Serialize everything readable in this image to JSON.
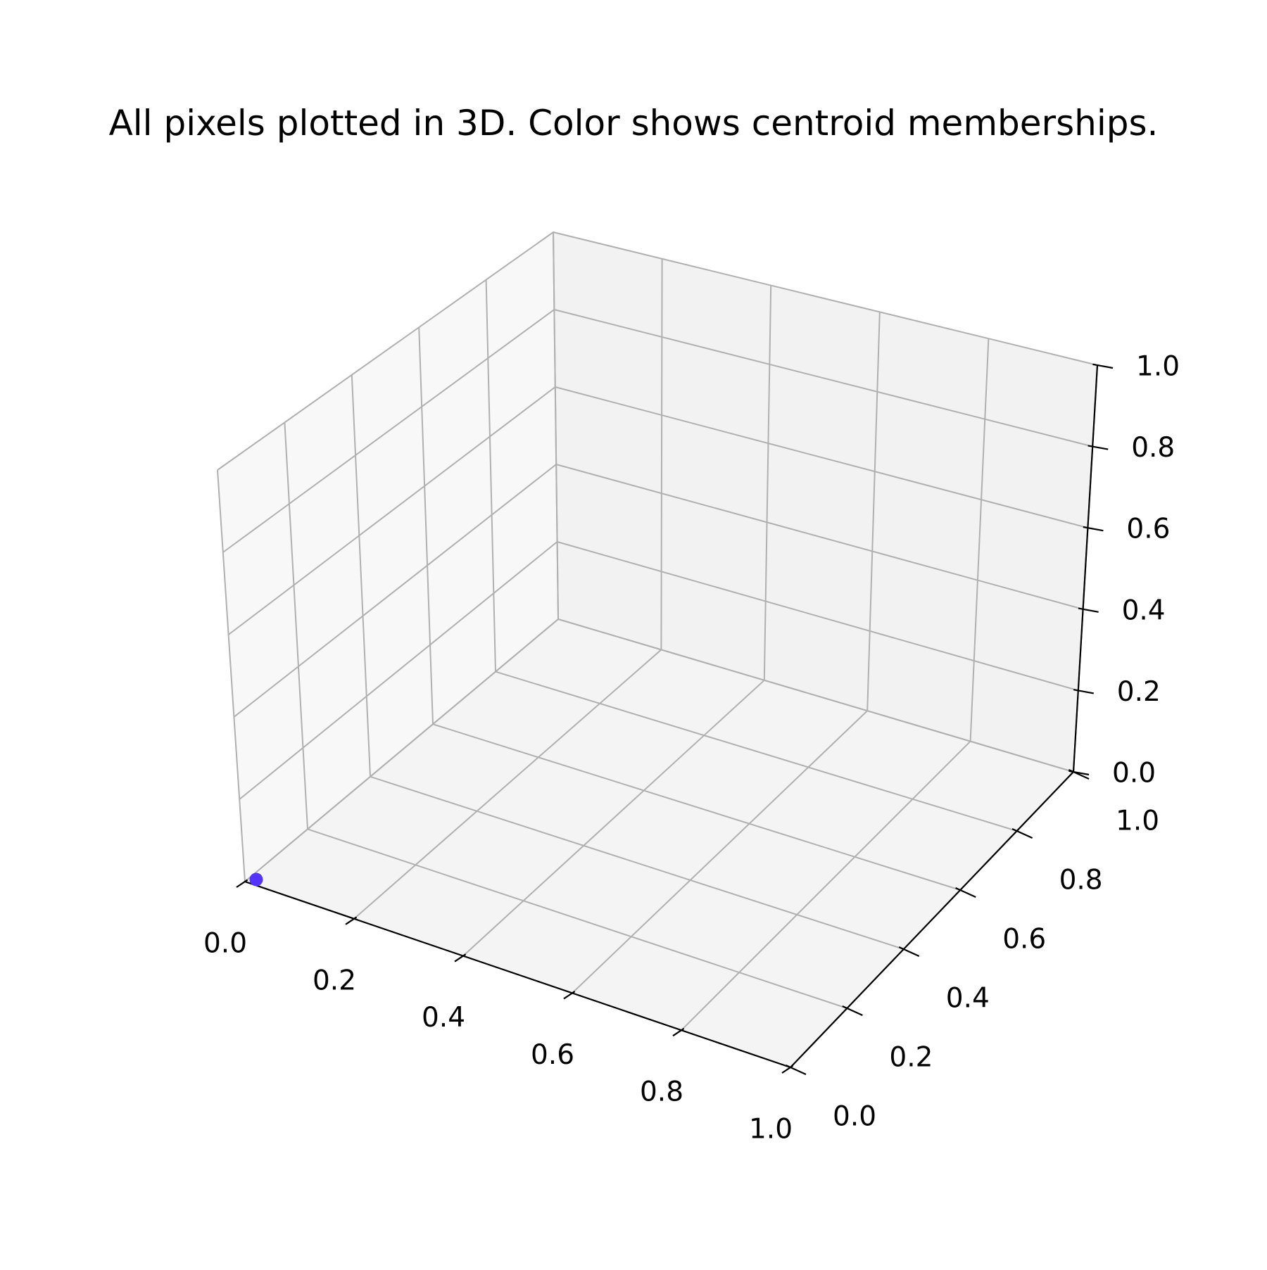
{
  "chart_data": {
    "type": "scatter",
    "projection": "3d",
    "title": "All pixels plotted in 3D. Color shows centroid memberships.",
    "xlabel": "",
    "ylabel": "",
    "zlabel": "",
    "xlim": [
      0.0,
      1.0
    ],
    "ylim": [
      0.0,
      1.0
    ],
    "zlim": [
      0.0,
      1.0
    ],
    "grid": true,
    "xticks": [
      "0.0",
      "0.2",
      "0.4",
      "0.6",
      "0.8",
      "1.0"
    ],
    "yticks": [
      "0.0",
      "0.2",
      "0.4",
      "0.6",
      "0.8",
      "1.0"
    ],
    "zticks": [
      "0.0",
      "0.2",
      "0.4",
      "0.6",
      "0.8",
      "1.0"
    ],
    "points": [
      {
        "x": 0.0,
        "y": 0.0,
        "z": 0.0,
        "color": "#5533ff"
      }
    ]
  },
  "colors": {
    "pane_floor": "#f4f4f4",
    "pane_back": "#f2f2f2",
    "pane_left": "#f8f8f8",
    "grid": "#b0b0b0",
    "axis": "#000000"
  }
}
